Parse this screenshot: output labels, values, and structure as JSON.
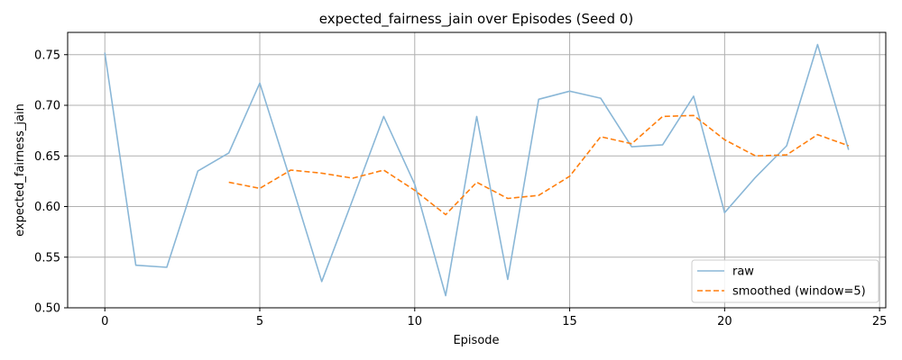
{
  "chart_data": {
    "type": "line",
    "title": "expected_fairness_jain over Episodes (Seed 0)",
    "xlabel": "Episode",
    "ylabel": "expected_fairness_jain",
    "xlim": [
      -1.2,
      25.2
    ],
    "ylim": [
      0.5,
      0.772
    ],
    "xticks": [
      0,
      5,
      10,
      15,
      20,
      25
    ],
    "yticks": [
      0.5,
      0.55,
      0.6,
      0.65,
      0.7,
      0.75
    ],
    "grid": true,
    "legend_position": "lower-right",
    "series": [
      {
        "name": "raw",
        "color": "#8ab7d7",
        "linestyle": "solid",
        "x": [
          0,
          1,
          2,
          3,
          4,
          5,
          6,
          7,
          8,
          9,
          10,
          11,
          12,
          13,
          14,
          15,
          16,
          17,
          18,
          19,
          20,
          21,
          22,
          23,
          24
        ],
        "y": [
          0.752,
          0.542,
          0.54,
          0.635,
          0.653,
          0.722,
          0.625,
          0.526,
          0.607,
          0.689,
          0.622,
          0.512,
          0.689,
          0.528,
          0.706,
          0.714,
          0.707,
          0.659,
          0.661,
          0.709,
          0.594,
          0.629,
          0.66,
          0.76,
          0.656
        ]
      },
      {
        "name": "smoothed (window=5)",
        "color": "#ff7f0e",
        "linestyle": "dashed",
        "x": [
          4,
          5,
          6,
          7,
          8,
          9,
          10,
          11,
          12,
          13,
          14,
          15,
          16,
          17,
          18,
          19,
          20,
          21,
          22,
          23,
          24
        ],
        "y": [
          0.624,
          0.618,
          0.636,
          0.633,
          0.628,
          0.636,
          0.616,
          0.592,
          0.624,
          0.608,
          0.611,
          0.63,
          0.669,
          0.662,
          0.689,
          0.69,
          0.666,
          0.65,
          0.651,
          0.671,
          0.66
        ]
      }
    ]
  }
}
